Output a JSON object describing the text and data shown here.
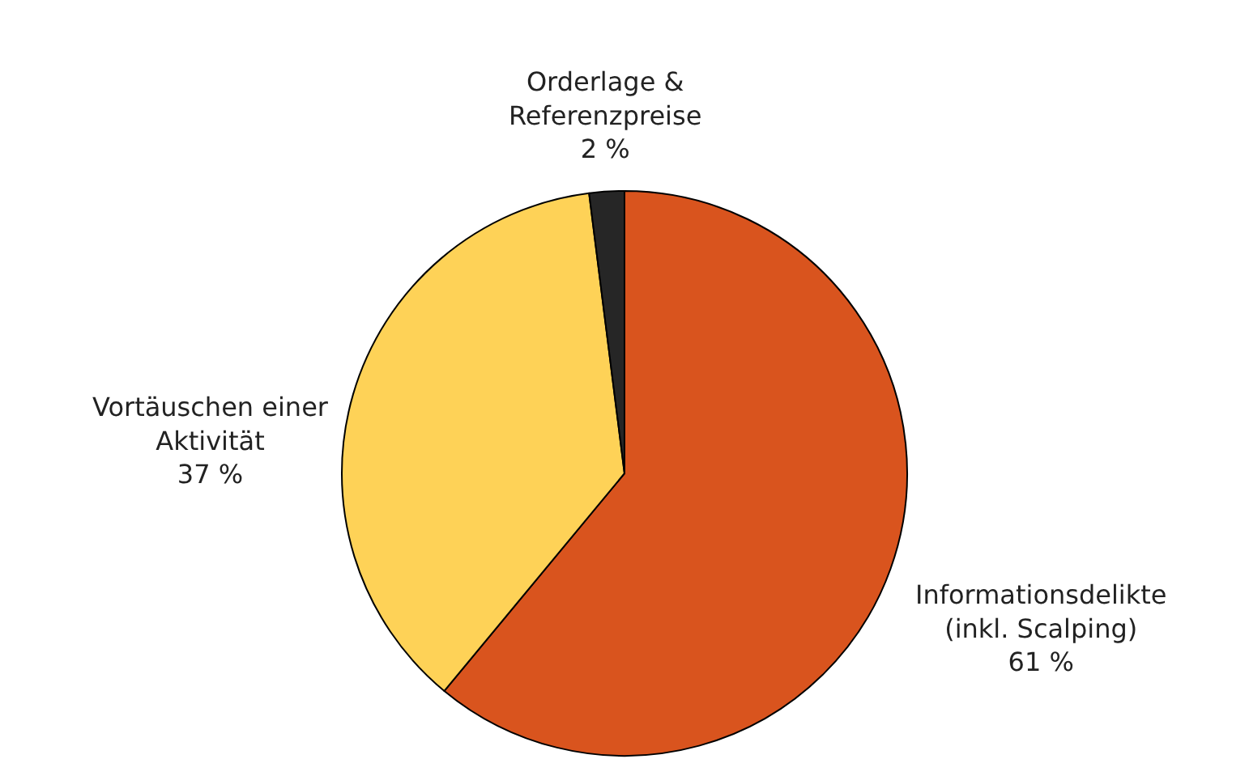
{
  "chart_data": {
    "type": "pie",
    "categories": [
      "Informationsdelikte (inkl. Scalping)",
      "Vortäuschen einer Aktivität",
      "Orderlage & Referenzpreise"
    ],
    "values": [
      61,
      37,
      2
    ],
    "value_labels": [
      "61 %",
      "37 %",
      "2 %"
    ],
    "colors": [
      "#d9541e",
      "#fed257",
      "#262626"
    ],
    "legend": false
  }
}
